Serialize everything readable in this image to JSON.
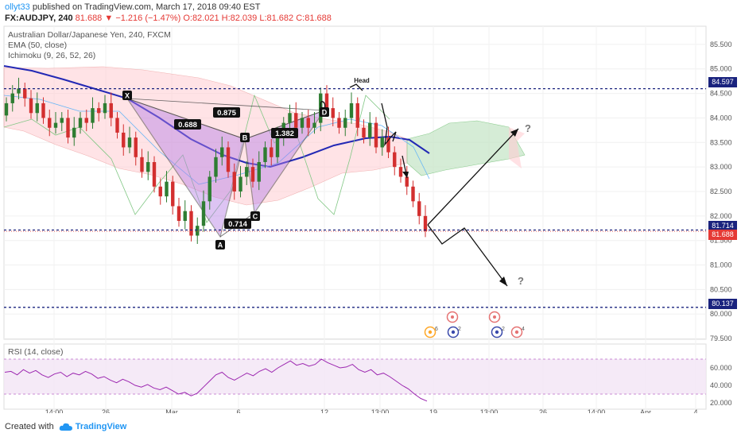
{
  "header": {
    "line1": {
      "user": "ollyt33",
      "text": " published on TradingView.com, March 17, 2018 09:40 EST"
    },
    "line2": {
      "symbol": "FX:AUDJPY, 240",
      "last": "81.688",
      "change": "▼ −1.216 (−1.47%)",
      "ohlc": "O:82.021 H:82.039 L:81.682 C:81.688"
    }
  },
  "legend": [
    "Australian Dollar/Japanese Yen, 240, FXCM",
    "EMA (50, close)",
    "Ichimoku (9, 26, 52, 26)"
  ],
  "rsi_label": "RSI (14, close)",
  "footer": {
    "created": "Created with",
    "brand": "TradingView"
  },
  "colors": {
    "up": "#2e7d32",
    "down": "#d32f2f",
    "ema": "#2329b5",
    "cloud_bull": "#c8e6c9",
    "cloud_bear": "#ffcdd2",
    "pattern": "#b57ee6",
    "rsi": "#9c27b0",
    "level": "#1a237e"
  },
  "chart_data": {
    "type": "candlestick",
    "price_axis": {
      "ticks": [
        79.5,
        80.0,
        80.5,
        81.0,
        81.5,
        82.0,
        82.5,
        83.0,
        83.5,
        84.0,
        84.5,
        85.0,
        85.5
      ],
      "labels": [
        "79.500",
        "80.000",
        "80.500",
        "81.000",
        "81.500",
        "82.000",
        "82.500",
        "83.000",
        "83.500",
        "84.000",
        "84.500",
        "85.000",
        "85.500"
      ]
    },
    "time_axis": [
      "14:00",
      "26",
      "Mar",
      "6",
      "12",
      "13:00",
      "19",
      "13:00",
      "26",
      "14:00",
      "Apr",
      "4"
    ],
    "horizontal_levels": [
      {
        "value": 84.597,
        "label": "84.597"
      },
      {
        "value": 81.714,
        "label": "81.714"
      },
      {
        "value": 80.137,
        "label": "80.137"
      }
    ],
    "last_price": {
      "value": 81.688,
      "label": "81.688"
    },
    "pattern": {
      "points": [
        {
          "label": "X",
          "price": 84.3
        },
        {
          "label": "A",
          "price": 81.5
        },
        {
          "label": "B",
          "price": 83.45
        },
        {
          "label": "C",
          "price": 82.05
        },
        {
          "label": "D",
          "price": 84.05
        }
      ],
      "ratios": [
        "0.688",
        "0.875",
        "1.382",
        "0.714"
      ]
    },
    "annotations": [
      "Head",
      "?",
      "?"
    ],
    "event_markers": [
      "6",
      "2",
      "2",
      "4"
    ],
    "rsi": {
      "ticks": [
        20,
        40,
        60
      ],
      "labels": [
        "20.000",
        "40.000",
        "60.000"
      ],
      "upper": 70,
      "lower": 30,
      "last": 22
    }
  }
}
